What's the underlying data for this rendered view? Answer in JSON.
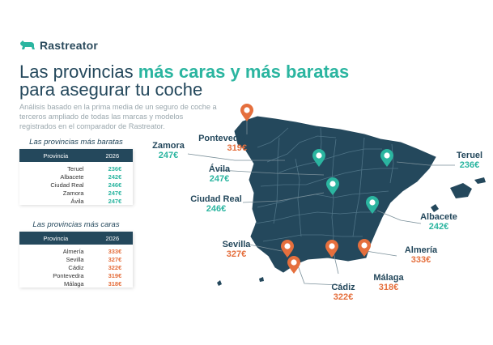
{
  "brand": {
    "name": "Rastreator",
    "logo_icon": "dog-icon"
  },
  "header": {
    "title_part1": "Las provincias ",
    "title_highlight": "más caras y más baratas",
    "title_line2": "para asegurar tu coche",
    "intro": "Análisis basado en la prima media de un seguro de coche a terceros ampliado de todas las marcas y modelos registrados en el comparador de Rastreator."
  },
  "cheap_table": {
    "title": "Las provincias más baratas",
    "headers": [
      "Provincia",
      "2026"
    ],
    "rows": [
      {
        "province": "Teruel",
        "price": "236€"
      },
      {
        "province": "Albacete",
        "price": "242€"
      },
      {
        "province": "Ciudad Real",
        "price": "246€"
      },
      {
        "province": "Zamora",
        "price": "247€"
      },
      {
        "province": "Ávila",
        "price": "247€"
      }
    ]
  },
  "expensive_table": {
    "title": "Las provincias más caras",
    "headers": [
      "Provincia",
      "2026"
    ],
    "rows": [
      {
        "province": "Almería",
        "price": "333€"
      },
      {
        "province": "Sevilla",
        "price": "327€"
      },
      {
        "province": "Cádiz",
        "price": "322€"
      },
      {
        "province": "Pontevedra",
        "price": "319€"
      },
      {
        "province": "Málaga",
        "price": "318€"
      }
    ]
  },
  "map": {
    "colors": {
      "land": "#24485c",
      "border": "#4f7487",
      "cheap": "#2bb5a0",
      "expensive": "#e56f3d",
      "leader": "#7a8f99"
    },
    "labels": {
      "pontevedra": {
        "name": "Pontevedra",
        "price": "319€"
      },
      "zamora": {
        "name": "Zamora",
        "price": "247€"
      },
      "avila": {
        "name": "Ávila",
        "price": "247€"
      },
      "ciudad_real": {
        "name": "Ciudad Real",
        "price": "246€"
      },
      "teruel": {
        "name": "Teruel",
        "price": "236€"
      },
      "albacete": {
        "name": "Albacete",
        "price": "242€"
      },
      "sevilla": {
        "name": "Sevilla",
        "price": "327€"
      },
      "almeria": {
        "name": "Almería",
        "price": "333€"
      },
      "malaga": {
        "name": "Málaga",
        "price": "318€"
      },
      "cadiz": {
        "name": "Cádiz",
        "price": "322€"
      }
    }
  }
}
